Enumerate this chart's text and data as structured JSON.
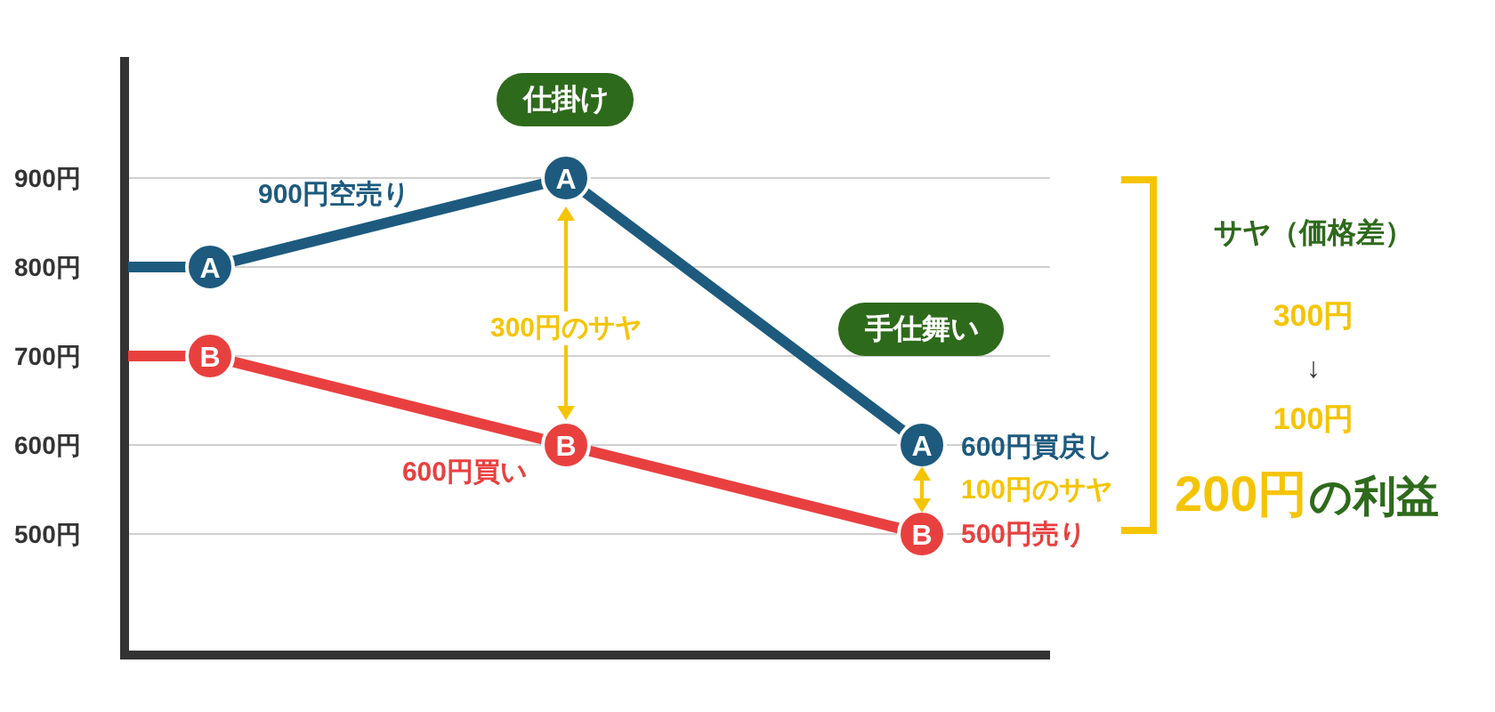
{
  "chart_data": {
    "type": "line",
    "categories": [
      null,
      null,
      null
    ],
    "series": [
      {
        "name": "A",
        "color": "#1d5a7e",
        "values": [
          800,
          900,
          600
        ]
      },
      {
        "name": "B",
        "color": "#e8403f",
        "values": [
          700,
          600,
          500
        ]
      }
    ],
    "ylim": [
      364,
      1036
    ],
    "yticks": [
      {
        "value": 500,
        "label": "500円"
      },
      {
        "value": 600,
        "label": "600円"
      },
      {
        "value": 700,
        "label": "700円"
      },
      {
        "value": 800,
        "label": "800円"
      },
      {
        "value": 900,
        "label": "900円"
      }
    ],
    "grid": "y",
    "marker": "circle",
    "legend": false,
    "tick_labels": "y",
    "annotations": [
      "900円空売り",
      "300円のサヤ",
      "600円買い",
      "600円買戻し",
      "100円のサヤ",
      "500円売り",
      "仕掛け",
      "手仕舞い",
      "サヤ（価格差）",
      "300円",
      "↓",
      "100円",
      "200円",
      "の利益"
    ]
  }
}
